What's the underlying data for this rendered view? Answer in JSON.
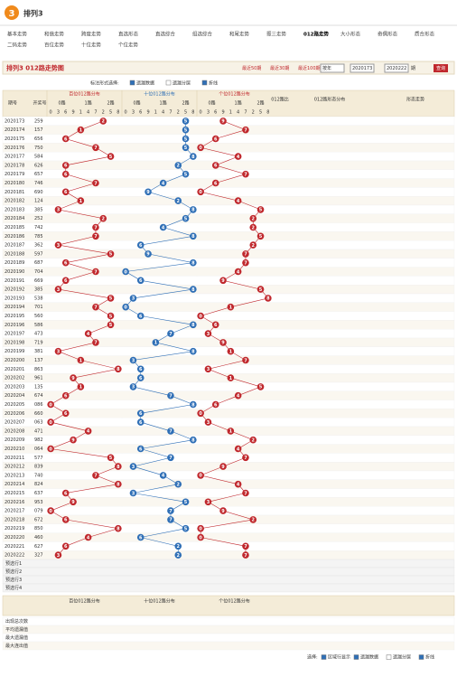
{
  "header": {
    "logo": "3",
    "title": "排列3"
  },
  "nav": [
    "基本走势",
    "和值走势",
    "跨度走势",
    "直选形态",
    "直选综合",
    "组选综合",
    "和尾走势",
    "振三走势",
    "012路走势",
    "大小形态",
    "奇偶形态",
    "质合形态",
    "二码走势",
    "百位走势",
    "十位走势",
    "个位走势"
  ],
  "active_nav": "012路走势",
  "page_title": "排列3 012路走势图",
  "periods": [
    "最近50期",
    "最近30期",
    "最近100期"
  ],
  "range": {
    "year": "按年",
    "from": "2020173",
    "to": "2020222",
    "to_label": "期",
    "query": "查询"
  },
  "toolbar": {
    "label": "标注形式选择:",
    "options": [
      "遗漏数据",
      "遗漏分层",
      "折线"
    ]
  },
  "table": {
    "col_issue": "期号",
    "col_number": "开奖号",
    "sections": [
      {
        "name": "百位012路分布",
        "color": "#c0282d"
      },
      {
        "name": "十位012路分布",
        "color": "#2f6fb6"
      },
      {
        "name": "个位012路分布",
        "color": "#c0282d"
      }
    ],
    "route_labels": [
      "0路",
      "1路",
      "2路"
    ],
    "digit_order": [
      0,
      3,
      6,
      9,
      1,
      4,
      7,
      2,
      5,
      8
    ],
    "right_headers": [
      "012路比",
      "012路形态分布",
      "形态走势"
    ],
    "rows": [
      {
        "issue": "2020173",
        "number": "259",
        "digits": [
          2,
          5,
          9
        ]
      },
      {
        "issue": "2020174",
        "number": "157",
        "digits": [
          1,
          5,
          7
        ]
      },
      {
        "issue": "2020175",
        "number": "656",
        "digits": [
          6,
          5,
          6
        ]
      },
      {
        "issue": "2020176",
        "number": "750",
        "digits": [
          7,
          5,
          0
        ]
      },
      {
        "issue": "2020177",
        "number": "584",
        "digits": [
          5,
          8,
          4
        ]
      },
      {
        "issue": "2020178",
        "number": "626",
        "digits": [
          6,
          2,
          6
        ]
      },
      {
        "issue": "2020179",
        "number": "657",
        "digits": [
          6,
          5,
          7
        ]
      },
      {
        "issue": "2020180",
        "number": "746",
        "digits": [
          7,
          4,
          6
        ]
      },
      {
        "issue": "2020181",
        "number": "690",
        "digits": [
          6,
          9,
          0
        ]
      },
      {
        "issue": "2020182",
        "number": "124",
        "digits": [
          1,
          2,
          4
        ]
      },
      {
        "issue": "2020183",
        "number": "385",
        "digits": [
          3,
          8,
          5
        ]
      },
      {
        "issue": "2020184",
        "number": "252",
        "digits": [
          2,
          5,
          2
        ]
      },
      {
        "issue": "2020185",
        "number": "742",
        "digits": [
          7,
          4,
          2
        ]
      },
      {
        "issue": "2020186",
        "number": "785",
        "digits": [
          7,
          8,
          5
        ]
      },
      {
        "issue": "2020187",
        "number": "362",
        "digits": [
          3,
          6,
          2
        ]
      },
      {
        "issue": "2020188",
        "number": "597",
        "digits": [
          5,
          9,
          7
        ]
      },
      {
        "issue": "2020189",
        "number": "687",
        "digits": [
          6,
          8,
          7
        ]
      },
      {
        "issue": "2020190",
        "number": "704",
        "digits": [
          7,
          0,
          4
        ]
      },
      {
        "issue": "2020191",
        "number": "669",
        "digits": [
          6,
          6,
          9
        ]
      },
      {
        "issue": "2020192",
        "number": "385",
        "digits": [
          3,
          8,
          5
        ]
      },
      {
        "issue": "2020193",
        "number": "538",
        "digits": [
          5,
          3,
          8
        ]
      },
      {
        "issue": "2020194",
        "number": "701",
        "digits": [
          7,
          0,
          1
        ]
      },
      {
        "issue": "2020195",
        "number": "560",
        "digits": [
          5,
          6,
          0
        ]
      },
      {
        "issue": "2020196",
        "number": "586",
        "digits": [
          5,
          8,
          6
        ]
      },
      {
        "issue": "2020197",
        "number": "473",
        "digits": [
          4,
          7,
          3
        ]
      },
      {
        "issue": "2020198",
        "number": "719",
        "digits": [
          7,
          1,
          9
        ]
      },
      {
        "issue": "2020199",
        "number": "381",
        "digits": [
          3,
          8,
          1
        ]
      },
      {
        "issue": "2020200",
        "number": "137",
        "digits": [
          1,
          3,
          7
        ]
      },
      {
        "issue": "2020201",
        "number": "863",
        "digits": [
          8,
          6,
          3
        ]
      },
      {
        "issue": "2020202",
        "number": "961",
        "digits": [
          9,
          6,
          1
        ]
      },
      {
        "issue": "2020203",
        "number": "135",
        "digits": [
          1,
          3,
          5
        ]
      },
      {
        "issue": "2020204",
        "number": "674",
        "digits": [
          6,
          7,
          4
        ]
      },
      {
        "issue": "2020205",
        "number": "086",
        "digits": [
          0,
          8,
          6
        ]
      },
      {
        "issue": "2020206",
        "number": "660",
        "digits": [
          6,
          6,
          0
        ]
      },
      {
        "issue": "2020207",
        "number": "063",
        "digits": [
          0,
          6,
          3
        ]
      },
      {
        "issue": "2020208",
        "number": "471",
        "digits": [
          4,
          7,
          1
        ]
      },
      {
        "issue": "2020209",
        "number": "982",
        "digits": [
          9,
          8,
          2
        ]
      },
      {
        "issue": "2020210",
        "number": "064",
        "digits": [
          0,
          6,
          4
        ]
      },
      {
        "issue": "2020211",
        "number": "577",
        "digits": [
          5,
          7,
          7
        ]
      },
      {
        "issue": "2020212",
        "number": "839",
        "digits": [
          8,
          3,
          9
        ]
      },
      {
        "issue": "2020213",
        "number": "740",
        "digits": [
          7,
          4,
          0
        ]
      },
      {
        "issue": "2020214",
        "number": "824",
        "digits": [
          8,
          2,
          4
        ]
      },
      {
        "issue": "2020215",
        "number": "637",
        "digits": [
          6,
          3,
          7
        ]
      },
      {
        "issue": "2020216",
        "number": "953",
        "digits": [
          9,
          5,
          3
        ]
      },
      {
        "issue": "2020217",
        "number": "079",
        "digits": [
          0,
          7,
          9
        ]
      },
      {
        "issue": "2020218",
        "number": "672",
        "digits": [
          6,
          7,
          2
        ]
      },
      {
        "issue": "2020219",
        "number": "850",
        "digits": [
          8,
          5,
          0
        ]
      },
      {
        "issue": "2020220",
        "number": "460",
        "digits": [
          4,
          6,
          0
        ]
      },
      {
        "issue": "2020221",
        "number": "627",
        "digits": [
          6,
          2,
          7
        ]
      },
      {
        "issue": "2020222",
        "number": "327",
        "digits": [
          3,
          2,
          7
        ]
      }
    ],
    "preselect": [
      "预选行1",
      "预选行2",
      "预选行3",
      "预选行4"
    ],
    "stats": [
      "出现总次数",
      "平均遗漏值",
      "最大遗漏值",
      "最大连出值"
    ]
  },
  "footer": {
    "label": "选择:",
    "options": [
      "区域行显示",
      "遗漏数据",
      "遗漏分层",
      "折线"
    ]
  }
}
